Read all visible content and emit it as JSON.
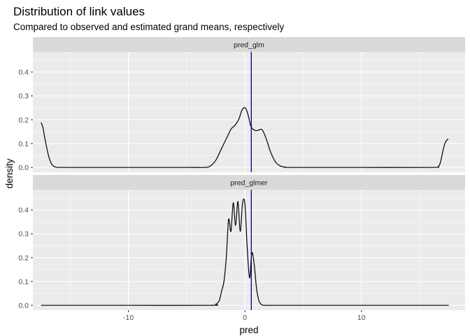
{
  "chart_data": {
    "type": "line",
    "title": "Distribution of link values",
    "subtitle": "Compared to observed and estimated grand means, respectively",
    "xlabel": "pred",
    "ylabel": "density",
    "xlim": [
      -18.2,
      18.9
    ],
    "ylim": [
      -0.02,
      0.485
    ],
    "x_ticks": [
      -10,
      0,
      10
    ],
    "x_tick_labels": [
      "-10",
      "0",
      "10"
    ],
    "y_ticks": [
      0,
      0.1,
      0.2,
      0.3,
      0.4
    ],
    "y_tick_labels": [
      "0.0",
      "0.1",
      "0.2",
      "0.3",
      "0.4"
    ],
    "grid": true,
    "line_color": "#000000",
    "mean_line_color": "#00008b",
    "facets": [
      {
        "label": "pred_glm",
        "mean_x": 0.55,
        "density": {
          "x": [
            -17.5,
            -17.35,
            -17.2,
            -17.0,
            -16.8,
            -16.6,
            -16.4,
            -16.2,
            -16.0,
            -15.5,
            -10,
            -5,
            -3.5,
            -3.0,
            -2.5,
            -2.0,
            -1.5,
            -1.2,
            -1.0,
            -0.8,
            -0.5,
            -0.3,
            -0.1,
            0.1,
            0.3,
            0.5,
            0.7,
            0.9,
            1.1,
            1.4,
            1.6,
            1.9,
            2.2,
            2.6,
            3.0,
            3.5,
            4.0,
            10,
            16,
            16.6,
            16.8,
            17.0,
            17.2,
            17.45
          ],
          "y": [
            0.188,
            0.17,
            0.13,
            0.08,
            0.04,
            0.015,
            0.005,
            0.001,
            0.0,
            0.0,
            0.0,
            0.0,
            0.0,
            0.005,
            0.03,
            0.08,
            0.13,
            0.16,
            0.17,
            0.18,
            0.205,
            0.235,
            0.25,
            0.245,
            0.215,
            0.175,
            0.16,
            0.155,
            0.155,
            0.16,
            0.148,
            0.11,
            0.065,
            0.025,
            0.007,
            0.001,
            0.0,
            0.0,
            0.0,
            0.005,
            0.025,
            0.07,
            0.105,
            0.12
          ]
        }
      },
      {
        "label": "pred_glmer",
        "mean_x": 0.55,
        "density": {
          "x": [
            -17.5,
            -10,
            -3,
            -2.5,
            -2.2,
            -2.0,
            -1.8,
            -1.6,
            -1.4,
            -1.2,
            -1.0,
            -0.8,
            -0.6,
            -0.4,
            -0.2,
            0.0,
            0.2,
            0.4,
            0.6,
            0.8,
            1.0,
            1.2,
            1.4,
            1.6,
            1.8,
            2.0,
            2.3,
            2.6,
            3.0,
            10,
            17.5
          ],
          "y": [
            0.0,
            0.0,
            0.0,
            0.005,
            0.02,
            0.06,
            0.1,
            0.2,
            0.36,
            0.31,
            0.43,
            0.335,
            0.435,
            0.31,
            0.43,
            0.425,
            0.24,
            0.115,
            0.22,
            0.17,
            0.07,
            0.02,
            0.004,
            0.0,
            0.0,
            0.0,
            0.0,
            0.0,
            0.0,
            0.0,
            0.0
          ]
        }
      }
    ]
  }
}
